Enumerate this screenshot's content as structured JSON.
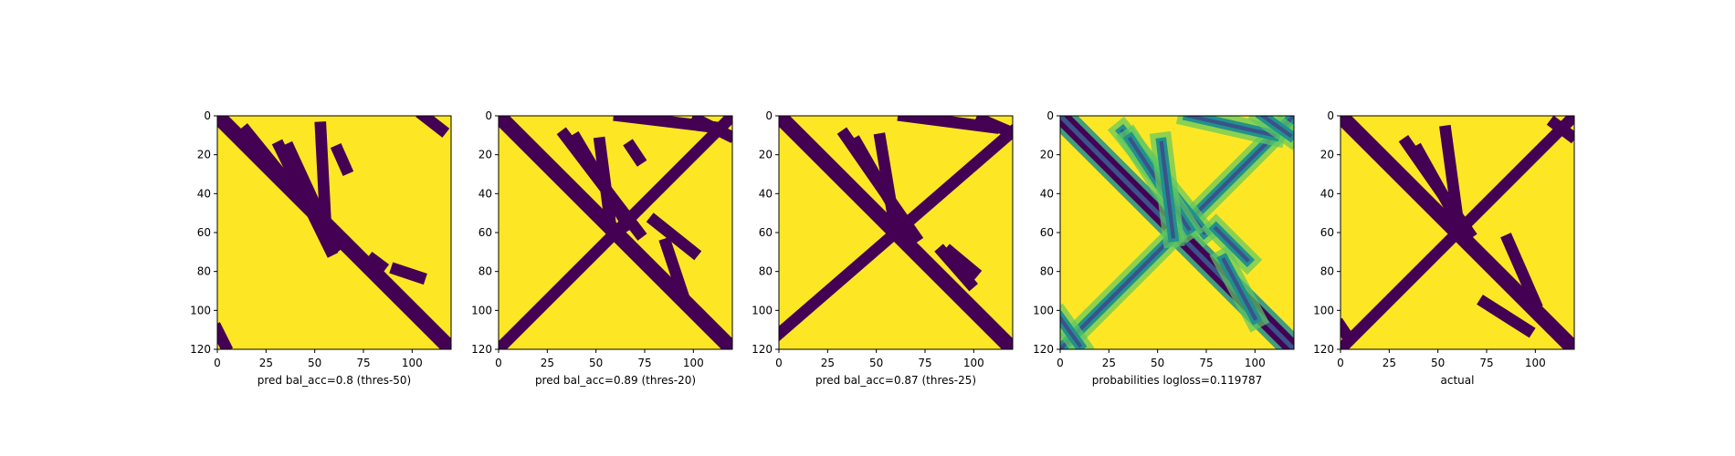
{
  "figure": {
    "colors": {
      "background": "#ffffff",
      "low": "#440154",
      "high": "#fde725",
      "mid_low": "#3b528b",
      "mid": "#21918c",
      "mid_high": "#5ec962"
    }
  },
  "chart_data": [
    {
      "type": "heatmap",
      "title": "",
      "xlabel": "pred bal_acc=0.8 (thres-50)",
      "ylabel": "",
      "matrix_size": 121,
      "xlim": [
        0,
        120
      ],
      "ylim": [
        120,
        0
      ],
      "x_ticks": [
        0,
        25,
        50,
        75,
        100
      ],
      "y_ticks": [
        0,
        20,
        40,
        60,
        80,
        100,
        120
      ],
      "colormap": "viridis",
      "value_range": [
        0,
        1
      ],
      "diagonal_band": [
        [
          0,
          0
        ],
        [
          120,
          120
        ]
      ],
      "contacts": [
        {
          "from": [
            15,
            62
          ],
          "to": [
            8,
            66
          ]
        },
        {
          "from": [
            32,
            58
          ],
          "to": [
            16,
            69
          ]
        },
        {
          "from": [
            37,
            60
          ],
          "to": [
            17,
            67
          ]
        },
        {
          "from": [
            53,
            56
          ],
          "to": [
            6,
            63
          ]
        },
        {
          "from": [
            106,
            115
          ],
          "to": [
            0,
            7
          ]
        },
        {
          "from": [
            62,
            66
          ],
          "to": [
            18,
            27
          ]
        },
        {
          "from": [
            80,
            84
          ],
          "to": [
            74,
            77
          ]
        },
        {
          "from": [
            92,
            104
          ],
          "to": [
            79,
            83
          ]
        },
        {
          "from": [
            0,
            4
          ],
          "to": [
            110,
            118
          ]
        }
      ]
    },
    {
      "type": "heatmap",
      "title": "",
      "xlabel": "pred bal_acc=0.89 (thres-20)",
      "ylabel": "",
      "matrix_size": 121,
      "xlim": [
        0,
        120
      ],
      "ylim": [
        120,
        0
      ],
      "x_ticks": [
        0,
        25,
        50,
        75,
        100
      ],
      "y_ticks": [
        0,
        20,
        40,
        60,
        80,
        100,
        120
      ],
      "colormap": "viridis",
      "value_range": [
        0,
        1
      ],
      "diagonal_band": [
        [
          0,
          0
        ],
        [
          120,
          120
        ]
      ],
      "contacts": [
        {
          "from": [
            0,
            120
          ],
          "to": [
            120,
            0
          ]
        },
        {
          "from": [
            34,
            72
          ],
          "to": [
            10,
            60
          ]
        },
        {
          "from": [
            40,
            66
          ],
          "to": [
            12,
            56
          ]
        },
        {
          "from": [
            52,
            58
          ],
          "to": [
            14,
            60
          ]
        },
        {
          "from": [
            62,
            112
          ],
          "to": [
            0,
            6
          ]
        },
        {
          "from": [
            68,
            72
          ],
          "to": [
            16,
            22
          ]
        },
        {
          "from": [
            86,
            96
          ],
          "to": [
            66,
            96
          ]
        },
        {
          "from": [
            80,
            100
          ],
          "to": [
            54,
            70
          ]
        },
        {
          "from": [
            102,
            118
          ],
          "to": [
            2,
            10
          ]
        }
      ]
    },
    {
      "type": "heatmap",
      "title": "",
      "xlabel": "pred bal_acc=0.87 (thres-25)",
      "ylabel": "",
      "matrix_size": 121,
      "xlim": [
        0,
        120
      ],
      "ylim": [
        120,
        0
      ],
      "x_ticks": [
        0,
        25,
        50,
        75,
        100
      ],
      "y_ticks": [
        0,
        20,
        40,
        60,
        80,
        100,
        120
      ],
      "colormap": "viridis",
      "value_range": [
        0,
        1
      ],
      "diagonal_band": [
        [
          0,
          0
        ],
        [
          120,
          120
        ]
      ],
      "contacts": [
        {
          "from": [
            0,
            120
          ],
          "to": [
            112,
            8
          ]
        },
        {
          "from": [
            34,
            70
          ],
          "to": [
            10,
            62
          ]
        },
        {
          "from": [
            40,
            64
          ],
          "to": [
            14,
            56
          ]
        },
        {
          "from": [
            52,
            60
          ],
          "to": [
            12,
            60
          ]
        },
        {
          "from": [
            64,
            110
          ],
          "to": [
            0,
            6
          ]
        },
        {
          "from": [
            84,
            98
          ],
          "to": [
            70,
            86
          ]
        },
        {
          "from": [
            88,
            100
          ],
          "to": [
            70,
            80
          ]
        },
        {
          "from": [
            104,
            118
          ],
          "to": [
            2,
            8
          ]
        }
      ]
    },
    {
      "type": "heatmap",
      "title": "",
      "xlabel": "probabilities logloss=0.119787",
      "ylabel": "",
      "matrix_size": 121,
      "xlim": [
        0,
        120
      ],
      "ylim": [
        120,
        0
      ],
      "x_ticks": [
        0,
        25,
        50,
        75,
        100
      ],
      "y_ticks": [
        0,
        20,
        40,
        60,
        80,
        100,
        120
      ],
      "colormap": "viridis",
      "value_range": [
        0,
        1
      ],
      "diagonal_band": [
        [
          0,
          0
        ],
        [
          120,
          120
        ]
      ],
      "contacts": [
        {
          "from": [
            0,
            120
          ],
          "to": [
            120,
            0
          ]
        },
        {
          "from": [
            32,
            74
          ],
          "to": [
            8,
            60
          ]
        },
        {
          "from": [
            36,
            66
          ],
          "to": [
            12,
            58
          ]
        },
        {
          "from": [
            52,
            58
          ],
          "to": [
            14,
            62
          ]
        },
        {
          "from": [
            66,
            110
          ],
          "to": [
            0,
            10
          ]
        },
        {
          "from": [
            84,
            100
          ],
          "to": [
            74,
            104
          ]
        },
        {
          "from": [
            80,
            96
          ],
          "to": [
            58,
            74
          ]
        },
        {
          "from": [
            104,
            118
          ],
          "to": [
            0,
            10
          ]
        },
        {
          "from": [
            0,
            10
          ],
          "to": [
            104,
            118
          ]
        }
      ]
    },
    {
      "type": "heatmap",
      "title": "",
      "xlabel": "actual",
      "ylabel": "",
      "matrix_size": 121,
      "xlim": [
        0,
        120
      ],
      "ylim": [
        120,
        0
      ],
      "x_ticks": [
        0,
        25,
        50,
        75,
        100
      ],
      "y_ticks": [
        0,
        20,
        40,
        60,
        80,
        100,
        120
      ],
      "colormap": "viridis",
      "value_range": [
        0,
        1
      ],
      "diagonal_band": [
        [
          0,
          0
        ],
        [
          120,
          120
        ]
      ],
      "contacts": [
        {
          "from": [
            0,
            120
          ],
          "to": [
            120,
            0
          ]
        },
        {
          "from": [
            34,
            66
          ],
          "to": [
            14,
            60
          ]
        },
        {
          "from": [
            40,
            60
          ],
          "to": [
            18,
            54
          ]
        },
        {
          "from": [
            54,
            60
          ],
          "to": [
            8,
            52
          ]
        },
        {
          "from": [
            0,
            4
          ],
          "to": [
            108,
            114
          ]
        },
        {
          "from": [
            86,
            100
          ],
          "to": [
            64,
            96
          ]
        },
        {
          "from": [
            74,
            96
          ],
          "to": [
            96,
            110
          ]
        },
        {
          "from": [
            110,
            118
          ],
          "to": [
            4,
            10
          ]
        }
      ]
    }
  ]
}
